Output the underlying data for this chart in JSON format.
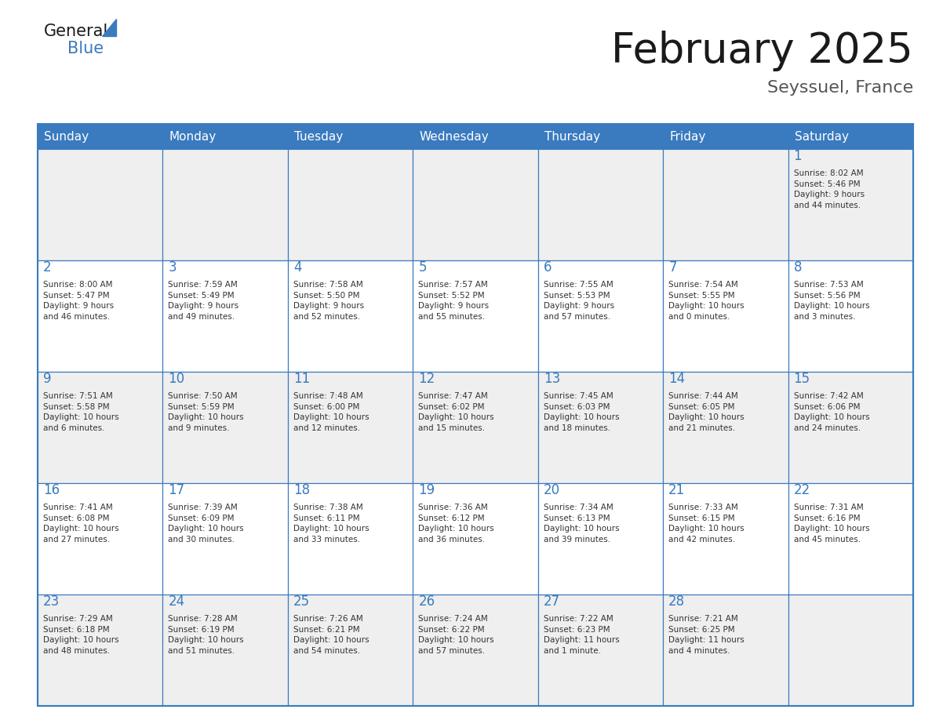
{
  "title": "February 2025",
  "subtitle": "Seyssuel, France",
  "header_bg": "#3a7abf",
  "header_text": "#ffffff",
  "cell_bg_light": "#efefef",
  "cell_bg_white": "#ffffff",
  "border_color": "#3a7abf",
  "day_names": [
    "Sunday",
    "Monday",
    "Tuesday",
    "Wednesday",
    "Thursday",
    "Friday",
    "Saturday"
  ],
  "title_color": "#1a1a1a",
  "subtitle_color": "#555555",
  "day_number_color": "#3a7abf",
  "cell_text_color": "#333333",
  "logo_general_color": "#1a1a1a",
  "logo_blue_color": "#3a7abf",
  "weeks": [
    [
      {
        "day": null,
        "info": ""
      },
      {
        "day": null,
        "info": ""
      },
      {
        "day": null,
        "info": ""
      },
      {
        "day": null,
        "info": ""
      },
      {
        "day": null,
        "info": ""
      },
      {
        "day": null,
        "info": ""
      },
      {
        "day": 1,
        "info": "Sunrise: 8:02 AM\nSunset: 5:46 PM\nDaylight: 9 hours\nand 44 minutes."
      }
    ],
    [
      {
        "day": 2,
        "info": "Sunrise: 8:00 AM\nSunset: 5:47 PM\nDaylight: 9 hours\nand 46 minutes."
      },
      {
        "day": 3,
        "info": "Sunrise: 7:59 AM\nSunset: 5:49 PM\nDaylight: 9 hours\nand 49 minutes."
      },
      {
        "day": 4,
        "info": "Sunrise: 7:58 AM\nSunset: 5:50 PM\nDaylight: 9 hours\nand 52 minutes."
      },
      {
        "day": 5,
        "info": "Sunrise: 7:57 AM\nSunset: 5:52 PM\nDaylight: 9 hours\nand 55 minutes."
      },
      {
        "day": 6,
        "info": "Sunrise: 7:55 AM\nSunset: 5:53 PM\nDaylight: 9 hours\nand 57 minutes."
      },
      {
        "day": 7,
        "info": "Sunrise: 7:54 AM\nSunset: 5:55 PM\nDaylight: 10 hours\nand 0 minutes."
      },
      {
        "day": 8,
        "info": "Sunrise: 7:53 AM\nSunset: 5:56 PM\nDaylight: 10 hours\nand 3 minutes."
      }
    ],
    [
      {
        "day": 9,
        "info": "Sunrise: 7:51 AM\nSunset: 5:58 PM\nDaylight: 10 hours\nand 6 minutes."
      },
      {
        "day": 10,
        "info": "Sunrise: 7:50 AM\nSunset: 5:59 PM\nDaylight: 10 hours\nand 9 minutes."
      },
      {
        "day": 11,
        "info": "Sunrise: 7:48 AM\nSunset: 6:00 PM\nDaylight: 10 hours\nand 12 minutes."
      },
      {
        "day": 12,
        "info": "Sunrise: 7:47 AM\nSunset: 6:02 PM\nDaylight: 10 hours\nand 15 minutes."
      },
      {
        "day": 13,
        "info": "Sunrise: 7:45 AM\nSunset: 6:03 PM\nDaylight: 10 hours\nand 18 minutes."
      },
      {
        "day": 14,
        "info": "Sunrise: 7:44 AM\nSunset: 6:05 PM\nDaylight: 10 hours\nand 21 minutes."
      },
      {
        "day": 15,
        "info": "Sunrise: 7:42 AM\nSunset: 6:06 PM\nDaylight: 10 hours\nand 24 minutes."
      }
    ],
    [
      {
        "day": 16,
        "info": "Sunrise: 7:41 AM\nSunset: 6:08 PM\nDaylight: 10 hours\nand 27 minutes."
      },
      {
        "day": 17,
        "info": "Sunrise: 7:39 AM\nSunset: 6:09 PM\nDaylight: 10 hours\nand 30 minutes."
      },
      {
        "day": 18,
        "info": "Sunrise: 7:38 AM\nSunset: 6:11 PM\nDaylight: 10 hours\nand 33 minutes."
      },
      {
        "day": 19,
        "info": "Sunrise: 7:36 AM\nSunset: 6:12 PM\nDaylight: 10 hours\nand 36 minutes."
      },
      {
        "day": 20,
        "info": "Sunrise: 7:34 AM\nSunset: 6:13 PM\nDaylight: 10 hours\nand 39 minutes."
      },
      {
        "day": 21,
        "info": "Sunrise: 7:33 AM\nSunset: 6:15 PM\nDaylight: 10 hours\nand 42 minutes."
      },
      {
        "day": 22,
        "info": "Sunrise: 7:31 AM\nSunset: 6:16 PM\nDaylight: 10 hours\nand 45 minutes."
      }
    ],
    [
      {
        "day": 23,
        "info": "Sunrise: 7:29 AM\nSunset: 6:18 PM\nDaylight: 10 hours\nand 48 minutes."
      },
      {
        "day": 24,
        "info": "Sunrise: 7:28 AM\nSunset: 6:19 PM\nDaylight: 10 hours\nand 51 minutes."
      },
      {
        "day": 25,
        "info": "Sunrise: 7:26 AM\nSunset: 6:21 PM\nDaylight: 10 hours\nand 54 minutes."
      },
      {
        "day": 26,
        "info": "Sunrise: 7:24 AM\nSunset: 6:22 PM\nDaylight: 10 hours\nand 57 minutes."
      },
      {
        "day": 27,
        "info": "Sunrise: 7:22 AM\nSunset: 6:23 PM\nDaylight: 11 hours\nand 1 minute."
      },
      {
        "day": 28,
        "info": "Sunrise: 7:21 AM\nSunset: 6:25 PM\nDaylight: 11 hours\nand 4 minutes."
      },
      {
        "day": null,
        "info": ""
      }
    ]
  ]
}
